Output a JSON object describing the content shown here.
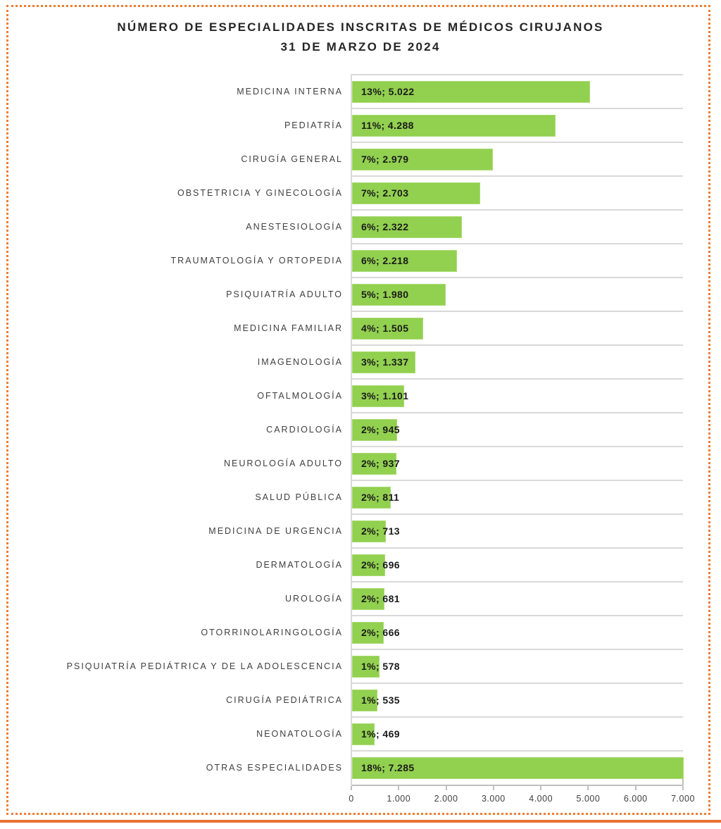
{
  "page": {
    "background": "#FFFFFF",
    "frame_border_color": "#ED7D31",
    "bottom_rule_color": "#E97132"
  },
  "title": {
    "line1": "NÚMERO DE ESPECIALIDADES INSCRITAS DE MÉDICOS CIRUJANOS",
    "line2": "31 DE MARZO DE 2024"
  },
  "chart_data": {
    "type": "bar",
    "orientation": "horizontal",
    "title": "NÚMERO DE ESPECIALIDADES INSCRITAS DE MÉDICOS CIRUJANOS 31 DE MARZO DE 2024",
    "xlabel": "",
    "ylabel": "",
    "xlim": [
      0,
      7000
    ],
    "grid": "category-separator-lines",
    "legend": "none",
    "bar_color": "#92D050",
    "gridline_color": "#D9D9D9",
    "axis_color": "#BFBFBF",
    "categories": [
      "MEDICINA INTERNA",
      "PEDIATRÍA",
      "CIRUGÍA GENERAL",
      "OBSTETRICIA Y GINECOLOGÍA",
      "ANESTESIOLOGÍA",
      "TRAUMATOLOGÍA Y ORTOPEDIA",
      "PSIQUIATRÍA ADULTO",
      "MEDICINA FAMILIAR",
      "IMAGENOLOGÍA",
      "OFTALMOLOGÍA",
      "CARDIOLOGÍA",
      "NEUROLOGÍA ADULTO",
      "SALUD PÚBLICA",
      "MEDICINA DE URGENCIA",
      "DERMATOLOGÍA",
      "UROLOGÍA",
      "OTORRINOLARINGOLOGÍA",
      "PSIQUIATRÍA PEDIÁTRICA Y DE LA ADOLESCENCIA",
      "CIRUGÍA PEDIÁTRICA",
      "NEONATOLOGÍA",
      "OTRAS ESPECIALIDADES"
    ],
    "values": [
      5022,
      4288,
      2979,
      2703,
      2322,
      2218,
      1980,
      1505,
      1337,
      1101,
      945,
      937,
      811,
      713,
      696,
      681,
      666,
      578,
      535,
      469,
      7285
    ],
    "percentages": [
      13,
      11,
      7,
      7,
      6,
      6,
      5,
      4,
      3,
      3,
      2,
      2,
      2,
      2,
      2,
      2,
      2,
      1,
      1,
      1,
      18
    ],
    "bar_labels": [
      "13%; 5.022",
      "11%; 4.288",
      "7%; 2.979",
      "7%; 2.703",
      "6%; 2.322",
      "6%; 2.218",
      "5%; 1.980",
      "4%; 1.505",
      "3%; 1.337",
      "3%; 1.101",
      "2%; 945",
      "2%; 937",
      "2%; 811",
      "2%; 713",
      "2%; 696",
      "2%; 681",
      "2%; 666",
      "1%; 578",
      "1%; 535",
      "1%; 469",
      "18%; 7.285"
    ],
    "x_tick_labels": [
      "0",
      "1.000",
      "2.000",
      "3.000",
      "4.000",
      "5.000",
      "6.000",
      "7.000"
    ],
    "x_tick_values": [
      0,
      1000,
      2000,
      3000,
      4000,
      5000,
      6000,
      7000
    ]
  }
}
